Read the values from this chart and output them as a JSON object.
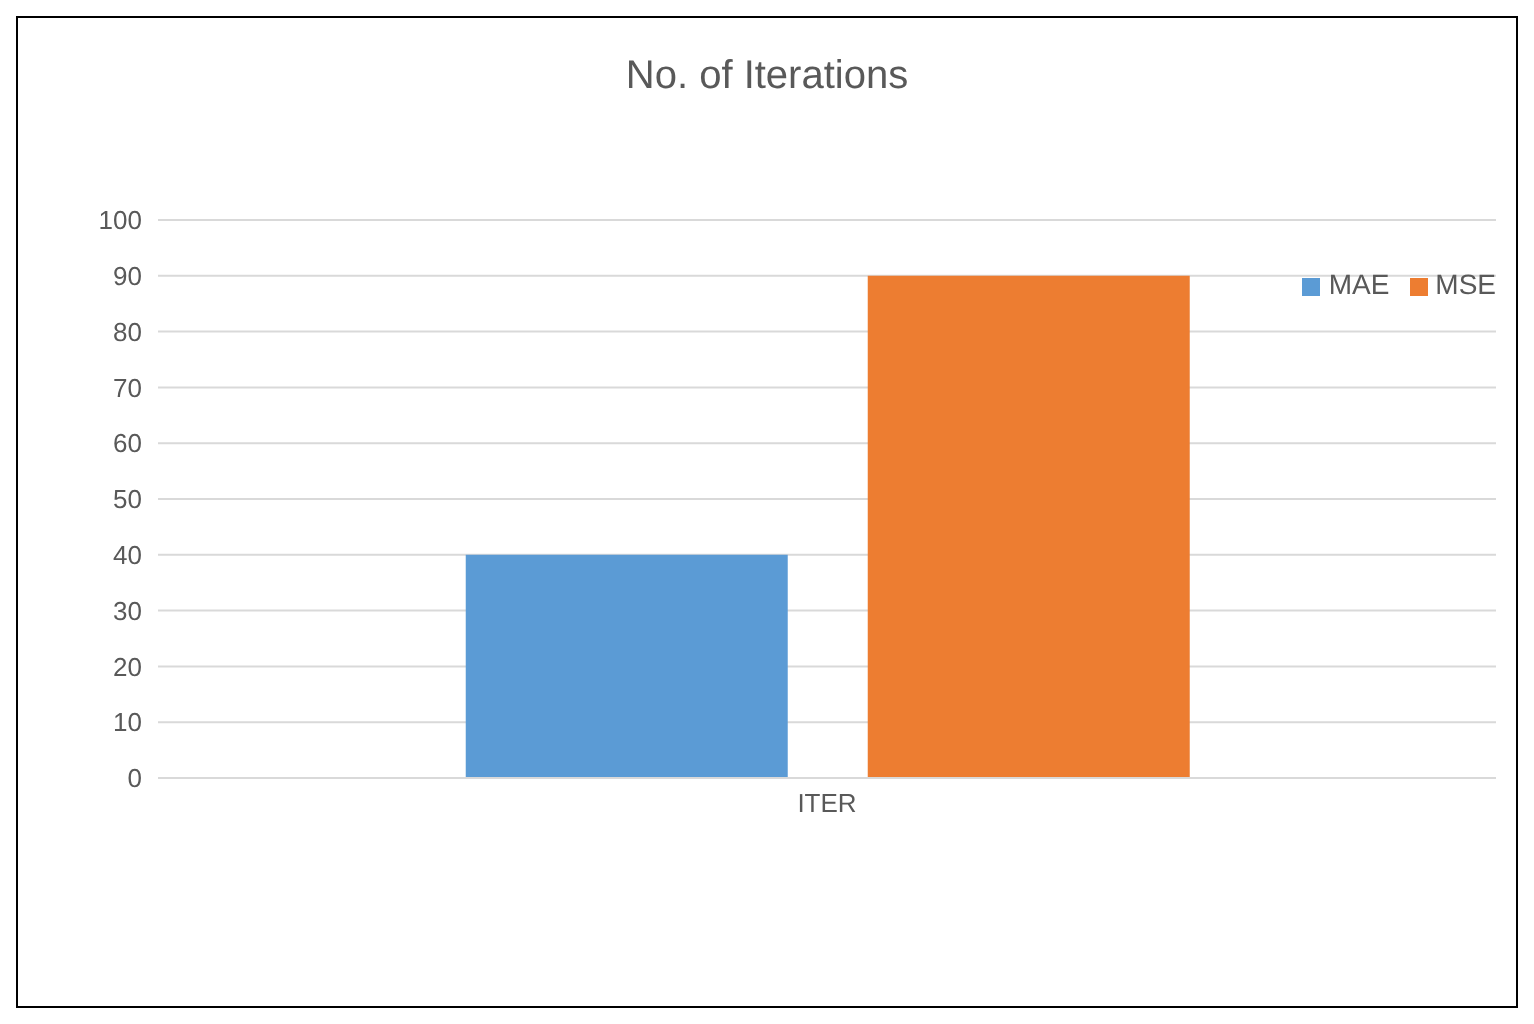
{
  "chart_data": {
    "type": "bar",
    "title": "No. of Iterations",
    "categories": [
      "ITER"
    ],
    "series": [
      {
        "name": "MAE",
        "color": "#5b9bd5",
        "values": [
          40
        ]
      },
      {
        "name": "MSE",
        "color": "#ed7d31",
        "values": [
          90
        ]
      }
    ],
    "ylim": [
      0,
      100
    ],
    "yticks": [
      0,
      10,
      20,
      30,
      40,
      50,
      60,
      70,
      80,
      90,
      100
    ],
    "grid": "y",
    "legend": "top right"
  }
}
